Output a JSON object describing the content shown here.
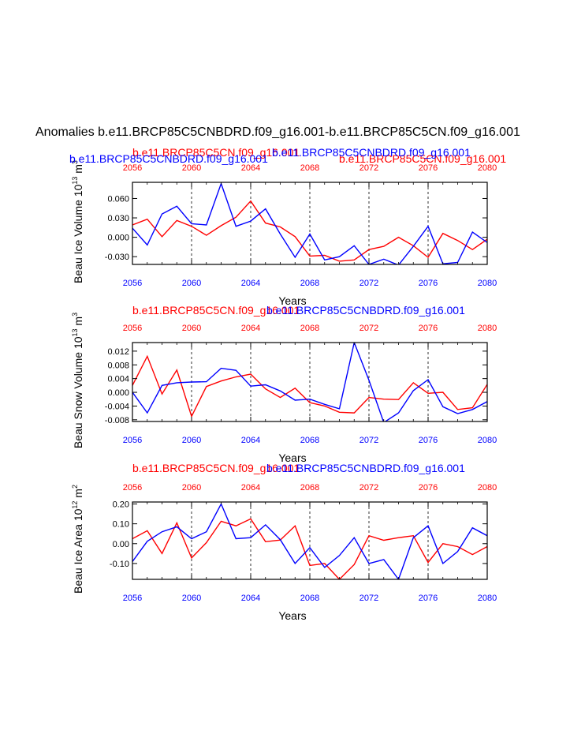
{
  "page": {
    "title": "Anomalies b.e11.BRCP85C5CNBDRD.f09_g16.001-b.e11.BRCP85C5CN.f09_g16.001"
  },
  "colors": {
    "series_a": "#ff0000",
    "series_b": "#0000ff",
    "axis": "#000000",
    "grid": "#000000"
  },
  "chart_data": [
    {
      "type": "line",
      "ylabel": "Beau Ice Volume 10",
      "ylabel_sup1": "13",
      "ylabel_mid": " m",
      "ylabel_sup2": "3",
      "xlabel": "Years",
      "xlim": [
        2056,
        2080
      ],
      "ylim": [
        -0.042,
        0.085
      ],
      "yticks": [
        -0.03,
        0.0,
        0.03,
        0.06
      ],
      "ytick_labels": [
        "-0.030",
        "0.000",
        "0.030",
        "0.060"
      ],
      "xticks": [
        2056,
        2060,
        2064,
        2068,
        2072,
        2076,
        2080
      ],
      "xtick_labels": [
        "2056",
        "2060",
        "2064",
        "2068",
        "2072",
        "2076",
        "2080"
      ],
      "x": [
        2056,
        2057,
        2058,
        2059,
        2060,
        2061,
        2062,
        2063,
        2064,
        2065,
        2066,
        2067,
        2068,
        2069,
        2070,
        2071,
        2072,
        2073,
        2074,
        2075,
        2076,
        2077,
        2078,
        2079,
        2080
      ],
      "series": [
        {
          "name": "b.e11.BRCP85C5CN.f09_g16.001",
          "color": "#ff0000",
          "values": [
            0.019,
            0.028,
            0.001,
            0.026,
            0.017,
            0.003,
            0.018,
            0.031,
            0.056,
            0.022,
            0.016,
            0.001,
            -0.029,
            -0.028,
            -0.037,
            -0.035,
            -0.019,
            -0.014,
            0.0,
            -0.013,
            -0.031,
            0.006,
            -0.005,
            -0.019,
            -0.003
          ]
        },
        {
          "name": "b.e11.BRCP85C5CNBDRD.f09_g16.001",
          "color": "#0000ff",
          "values": [
            0.014,
            -0.012,
            0.036,
            0.048,
            0.021,
            0.019,
            0.083,
            0.017,
            0.025,
            0.044,
            0.005,
            -0.031,
            0.005,
            -0.035,
            -0.03,
            -0.013,
            -0.042,
            -0.034,
            -0.043,
            -0.014,
            0.017,
            -0.041,
            -0.039,
            0.008,
            -0.008
          ]
        }
      ]
    },
    {
      "type": "line",
      "ylabel": "Beau Snow Volume 10",
      "ylabel_sup1": "13",
      "ylabel_mid": " m",
      "ylabel_sup2": "3",
      "xlabel": "Years",
      "xlim": [
        2056,
        2080
      ],
      "ylim": [
        -0.0085,
        0.0145
      ],
      "yticks": [
        -0.008,
        -0.004,
        0.0,
        0.004,
        0.008,
        0.012
      ],
      "ytick_labels": [
        "-0.008",
        "-0.004",
        "0.000",
        "0.004",
        "0.008",
        "0.012"
      ],
      "xticks": [
        2056,
        2060,
        2064,
        2068,
        2072,
        2076,
        2080
      ],
      "xtick_labels": [
        "2056",
        "2060",
        "2064",
        "2068",
        "2072",
        "2076",
        "2080"
      ],
      "x": [
        2056,
        2057,
        2058,
        2059,
        2060,
        2061,
        2062,
        2063,
        2064,
        2065,
        2066,
        2067,
        2068,
        2069,
        2070,
        2071,
        2072,
        2073,
        2074,
        2075,
        2076,
        2077,
        2078,
        2079,
        2080
      ],
      "series": [
        {
          "name": "b.e11.BRCP85C5CN.f09_g16.001",
          "color": "#ff0000",
          "values": [
            0.002,
            0.0105,
            -0.0005,
            0.0065,
            -0.007,
            0.0017,
            0.0033,
            0.0045,
            0.0053,
            0.001,
            -0.0015,
            0.0012,
            -0.003,
            -0.004,
            -0.0058,
            -0.006,
            -0.0015,
            -0.002,
            -0.0021,
            0.0028,
            -0.0003,
            0.0,
            -0.005,
            -0.0045,
            0.0023
          ]
        },
        {
          "name": "b.e11.BRCP85C5CNBDRD.f09_g16.001",
          "color": "#0000ff",
          "values": [
            0.0,
            -0.006,
            0.002,
            0.0028,
            0.003,
            0.0031,
            0.007,
            0.0064,
            0.0018,
            0.0022,
            0.0004,
            -0.0023,
            -0.002,
            -0.0035,
            -0.0048,
            0.0145,
            0.0035,
            -0.0088,
            -0.006,
            0.0005,
            0.0037,
            -0.0042,
            -0.0062,
            -0.005,
            -0.0027
          ]
        }
      ]
    },
    {
      "type": "line",
      "ylabel": "Beau Ice Area 10",
      "ylabel_sup1": "12",
      "ylabel_mid": " m",
      "ylabel_sup2": "2",
      "xlabel": "Years",
      "xlim": [
        2056,
        2080
      ],
      "ylim": [
        -0.18,
        0.21
      ],
      "yticks": [
        -0.1,
        0.0,
        0.1,
        0.2
      ],
      "ytick_labels": [
        "-0.10",
        "0.00",
        "0.10",
        "0.20"
      ],
      "xticks": [
        2056,
        2060,
        2064,
        2068,
        2072,
        2076,
        2080
      ],
      "xtick_labels": [
        "2056",
        "2060",
        "2064",
        "2068",
        "2072",
        "2076",
        "2080"
      ],
      "x": [
        2056,
        2057,
        2058,
        2059,
        2060,
        2061,
        2062,
        2063,
        2064,
        2065,
        2066,
        2067,
        2068,
        2069,
        2070,
        2071,
        2072,
        2073,
        2074,
        2075,
        2076,
        2077,
        2078,
        2079,
        2080
      ],
      "series": [
        {
          "name": "b.e11.BRCP85C5CN.f09_g16.001",
          "color": "#ff0000",
          "values": [
            0.025,
            0.065,
            -0.05,
            0.105,
            -0.072,
            0.005,
            0.113,
            0.09,
            0.125,
            0.01,
            0.018,
            0.09,
            -0.11,
            -0.1,
            -0.18,
            -0.105,
            0.04,
            0.017,
            0.03,
            0.04,
            -0.095,
            0.0,
            -0.015,
            -0.055,
            -0.015
          ]
        },
        {
          "name": "b.e11.BRCP85C5CNBDRD.f09_g16.001",
          "color": "#0000ff",
          "values": [
            -0.09,
            0.012,
            0.06,
            0.085,
            0.025,
            0.06,
            0.2,
            0.025,
            0.03,
            0.095,
            0.02,
            -0.1,
            -0.02,
            -0.12,
            -0.06,
            0.03,
            -0.1,
            -0.08,
            -0.18,
            0.03,
            0.09,
            -0.1,
            -0.04,
            0.08,
            0.04
          ]
        }
      ]
    }
  ]
}
